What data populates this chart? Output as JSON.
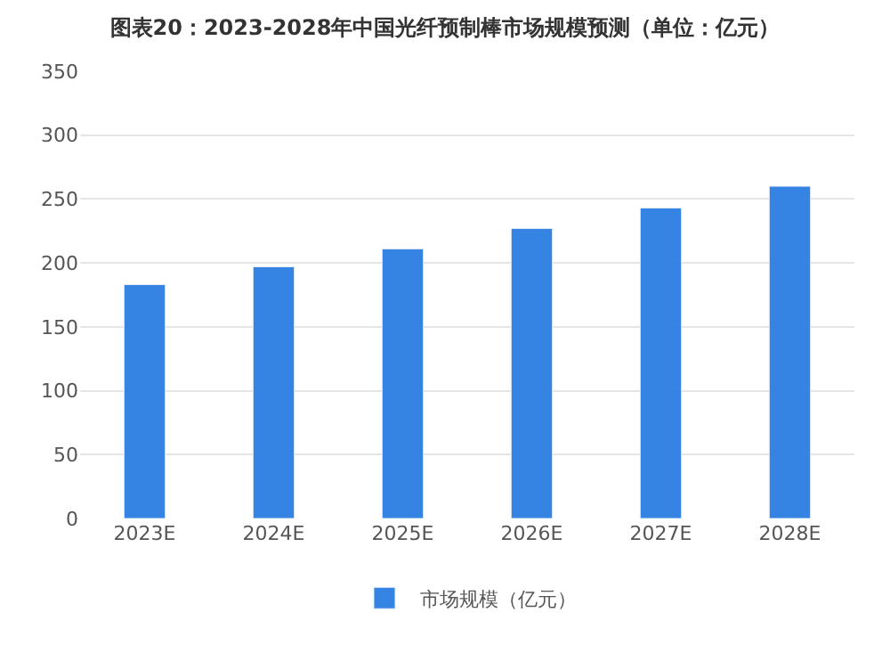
{
  "chart_data": {
    "type": "bar",
    "title": "图表20：2023-2028年中国光纤预制棒市场规模预测（单位：亿元）",
    "categories": [
      "2023E",
      "2024E",
      "2025E",
      "2026E",
      "2027E",
      "2028E"
    ],
    "series": [
      {
        "name": "市场规模（亿元）",
        "color": "#3584e4",
        "values": [
          183,
          197,
          211,
          227,
          243,
          260
        ]
      }
    ],
    "ylim": [
      0,
      350
    ],
    "yticks": [
      0,
      50,
      100,
      150,
      200,
      250,
      300,
      350
    ],
    "grid": "y",
    "legend": "bottom"
  }
}
